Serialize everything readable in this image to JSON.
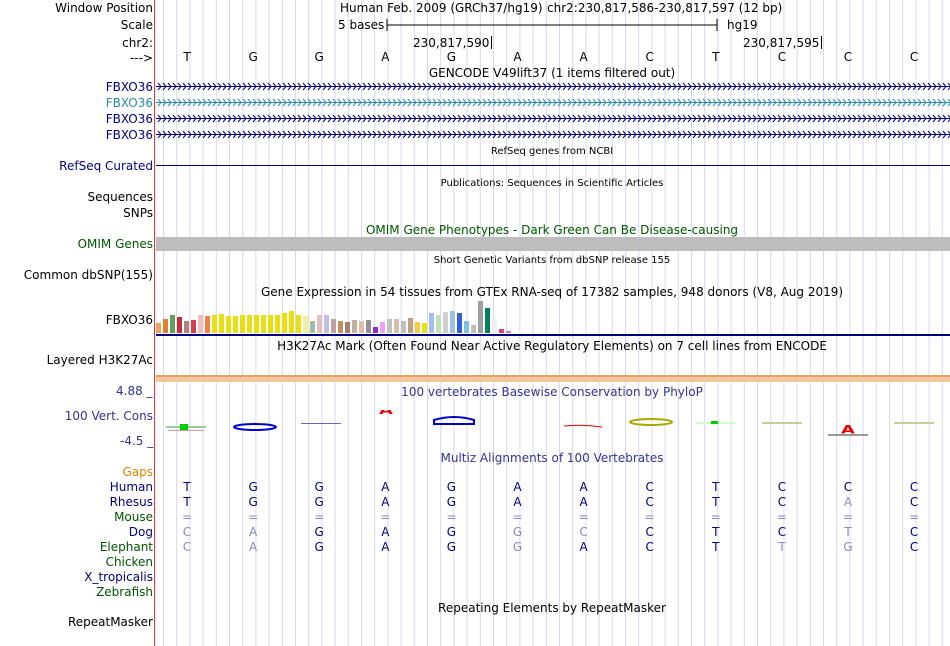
{
  "header": {
    "window_position_label": "Window Position",
    "scale_label": "Scale",
    "chrom_label": "chr2:",
    "arrow_label": "--->",
    "assembly_text": "Human Feb. 2009 (GRCh37/hg19)",
    "position_text": "chr2:230,817,586-230,817,597 (12 bp)",
    "scale_text": "5 bases",
    "db_text": "hg19",
    "coord_left": "230,817,590",
    "coord_right": "230,817,595",
    "sequence": [
      "T",
      "G",
      "G",
      "A",
      "G",
      "A",
      "A",
      "C",
      "T",
      "C",
      "C",
      "C"
    ]
  },
  "tracks": {
    "gencode_title": "GENCODE V49lift37 (1 items filtered out)",
    "gencode_items": [
      {
        "label": "FBXO36",
        "color": "#000080"
      },
      {
        "label": "FBXO36",
        "color": "#2a8ab5"
      },
      {
        "label": "FBXO36",
        "color": "#000080"
      },
      {
        "label": "FBXO36",
        "color": "#000080"
      }
    ],
    "refseq_title": "RefSeq genes from NCBI",
    "refseq_label": "RefSeq Curated",
    "pubs_title": "Publications: Sequences in Scientific Articles",
    "sequences_label": "Sequences",
    "snps_label": "SNPs",
    "omim_title": "OMIM Gene Phenotypes - Dark Green Can Be Disease-causing",
    "omim_label": "OMIM Genes",
    "dbsnp_title": "Short Genetic Variants from dbSNP release 155",
    "dbsnp_label": "Common dbSNP(155)",
    "gtex_title": "Gene Expression in 54 tissues from GTEx RNA-seq of 17382 samples, 948 donors (V8, Aug 2019)",
    "gtex_label": "FBXO36",
    "h3k_title": "H3K27Ac Mark (Often Found Near Active Regulatory Elements) on 7 cell lines from ENCODE",
    "h3k_label": "Layered H3K27Ac",
    "phylop_title": "100 vertebrates Basewise Conservation by PhyloP",
    "phylop_label": "100 Vert. Cons",
    "phylop_max": "4.88 _",
    "phylop_min": "-4.5 _",
    "multiz_title": "Multiz Alignments of 100 Vertebrates",
    "rmsk_title": "Repeating Elements by RepeatMasker",
    "rmsk_label": "RepeatMasker"
  },
  "gtex_values": [
    {
      "c": "#f0a060",
      "v": 10
    },
    {
      "c": "#e08030",
      "v": 14
    },
    {
      "c": "#60a060",
      "v": 18
    },
    {
      "c": "#c03040",
      "v": 16
    },
    {
      "c": "#b08080",
      "v": 12
    },
    {
      "c": "#d04050",
      "v": 13
    },
    {
      "c": "#f0c0c0",
      "v": 18
    },
    {
      "c": "#f08040",
      "v": 17
    },
    {
      "c": "#e8e010",
      "v": 18
    },
    {
      "c": "#e8e010",
      "v": 19
    },
    {
      "c": "#e8e010",
      "v": 17
    },
    {
      "c": "#e8e010",
      "v": 17
    },
    {
      "c": "#e8e010",
      "v": 18
    },
    {
      "c": "#e8e010",
      "v": 18
    },
    {
      "c": "#e8e010",
      "v": 18
    },
    {
      "c": "#e8e010",
      "v": 18
    },
    {
      "c": "#e8e010",
      "v": 18
    },
    {
      "c": "#e8e010",
      "v": 18
    },
    {
      "c": "#e8e010",
      "v": 20
    },
    {
      "c": "#e8e010",
      "v": 22
    },
    {
      "c": "#e8e010",
      "v": 18
    },
    {
      "c": "#f0f0a0",
      "v": 17
    },
    {
      "c": "#a0c0a0",
      "v": 12
    },
    {
      "c": "#e0c0c0",
      "v": 18
    },
    {
      "c": "#c0c0e0",
      "v": 18
    },
    {
      "c": "#c0a0a0",
      "v": 14
    },
    {
      "c": "#c09060",
      "v": 12
    },
    {
      "c": "#a08070",
      "v": 11
    },
    {
      "c": "#c0b0a0",
      "v": 13
    },
    {
      "c": "#e0c0a0",
      "v": 12
    },
    {
      "c": "#909090",
      "v": 13
    },
    {
      "c": "#9030c0",
      "v": 6
    },
    {
      "c": "#f0a0f0",
      "v": 11
    },
    {
      "c": "#c0c0c0",
      "v": 14
    },
    {
      "c": "#d0c0b0",
      "v": 14
    },
    {
      "c": "#c0c0c0",
      "v": 12
    },
    {
      "c": "#c0a080",
      "v": 15
    },
    {
      "c": "#f0d040",
      "v": 11
    },
    {
      "c": "#e8e010",
      "v": 10
    },
    {
      "c": "#a0c0f0",
      "v": 20
    },
    {
      "c": "#c0e0c0",
      "v": 18
    },
    {
      "c": "#d0d0d0",
      "v": 21
    },
    {
      "c": "#a0c0e0",
      "v": 22
    },
    {
      "c": "#3060e0",
      "v": 20
    },
    {
      "c": "#80c0e0",
      "v": 12
    },
    {
      "c": "#c0c0c0",
      "v": 8
    },
    {
      "c": "#a0a0a0",
      "v": 32
    },
    {
      "c": "#008060",
      "v": 25
    },
    {
      "c": "#f0f0f0",
      "v": 14
    },
    {
      "c": "#e04080",
      "v": 4
    },
    {
      "c": "#c080e0",
      "v": 2
    }
  ],
  "multiz": {
    "species": [
      {
        "name": "Human",
        "color": "#000080",
        "bases": [
          "T",
          "G",
          "G",
          "A",
          "G",
          "A",
          "A",
          "C",
          "T",
          "C",
          "C",
          "C"
        ],
        "shade": [
          0,
          0,
          0,
          0,
          0,
          0,
          0,
          0,
          0,
          0,
          0,
          0
        ]
      },
      {
        "name": "Rhesus",
        "color": "#000080",
        "bases": [
          "T",
          "G",
          "G",
          "A",
          "G",
          "A",
          "A",
          "C",
          "T",
          "C",
          "A",
          "C"
        ],
        "shade": [
          0,
          0,
          0,
          0,
          0,
          0,
          0,
          0,
          0,
          0,
          1,
          0
        ]
      },
      {
        "name": "Mouse",
        "color": "#005500",
        "bases": [
          "=",
          "=",
          "=",
          "=",
          "=",
          "=",
          "=",
          "=",
          "=",
          "=",
          "=",
          "="
        ],
        "shade": [
          1,
          1,
          1,
          1,
          1,
          1,
          1,
          1,
          1,
          1,
          1,
          1
        ]
      },
      {
        "name": "Dog",
        "color": "#000080",
        "bases": [
          "C",
          "A",
          "G",
          "A",
          "G",
          "G",
          "C",
          "C",
          "T",
          "C",
          "T",
          "C"
        ],
        "shade": [
          1,
          1,
          0,
          0,
          0,
          1,
          1,
          0,
          0,
          0,
          1,
          0
        ]
      },
      {
        "name": "Elephant",
        "color": "#005500",
        "bases": [
          "C",
          "A",
          "G",
          "A",
          "G",
          "G",
          "A",
          "C",
          "T",
          "T",
          "G",
          "C"
        ],
        "shade": [
          1,
          1,
          0,
          0,
          0,
          1,
          0,
          0,
          0,
          1,
          1,
          0
        ]
      },
      {
        "name": "Chicken",
        "color": "#005500",
        "bases": [],
        "shade": []
      },
      {
        "name": "X_tropicalis",
        "color": "#000080",
        "bases": [],
        "shade": []
      },
      {
        "name": "Zebrafish",
        "color": "#005500",
        "bases": [],
        "shade": []
      }
    ]
  },
  "colors": {
    "navy": "#000080",
    "omim_green": "#005500",
    "gaps_orange": "#e08000",
    "phylop_blue": "#333399",
    "grid": "#d8d8e8",
    "h3k_bar": "#f0c8a0"
  }
}
